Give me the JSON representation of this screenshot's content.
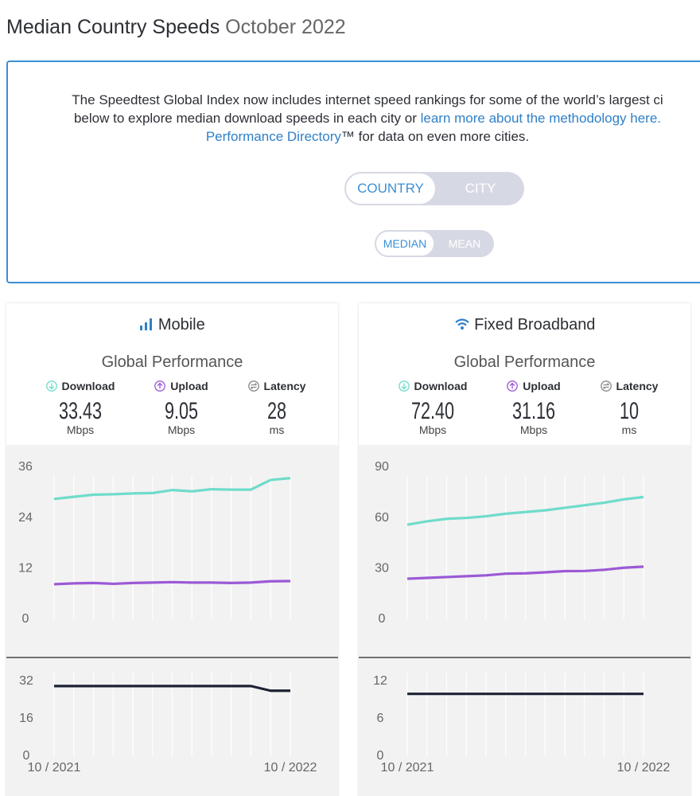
{
  "header": {
    "title": "Median Country Speeds",
    "subtitle": "October 2022"
  },
  "intro": {
    "line1": "The Speedtest Global Index now includes internet speed rankings for some of the world’s largest ci",
    "line2": "below to explore median download speeds in each city or ",
    "line2_link": "learn more about the methodology here.",
    "line3_link": "Performance Directory",
    "line3": "™ for data on even more cities."
  },
  "toggles": {
    "scope": [
      "COUNTRY",
      "CITY"
    ],
    "statistic": [
      "MEDIAN",
      "MEAN"
    ]
  },
  "panels": [
    {
      "title": "Mobile",
      "subtitle": "Global Performance",
      "stats": [
        {
          "label": "Download",
          "value": "33.43",
          "unit": "Mbps"
        },
        {
          "label": "Upload",
          "value": "9.05",
          "unit": "Mbps"
        },
        {
          "label": "Latency",
          "value": "28",
          "unit": "ms"
        }
      ]
    },
    {
      "title": "Fixed Broadband",
      "subtitle": "Global Performance",
      "stats": [
        {
          "label": "Download",
          "value": "72.40",
          "unit": "Mbps"
        },
        {
          "label": "Upload",
          "value": "31.16",
          "unit": "Mbps"
        },
        {
          "label": "Latency",
          "value": "10",
          "unit": "ms"
        }
      ]
    }
  ],
  "chart_data": [
    {
      "type": "line",
      "ylim": [
        0,
        36
      ],
      "yticks": [
        0,
        12,
        24,
        36
      ],
      "series": [
        {
          "color": "#6fdcca",
          "values": [
            28.5,
            29,
            29.5,
            29.6,
            29.8,
            29.9,
            30.6,
            30.3,
            30.8,
            30.7,
            30.7,
            33.0,
            33.43
          ]
        },
        {
          "color": "#9b59d6",
          "values": [
            8.3,
            8.5,
            8.6,
            8.4,
            8.6,
            8.7,
            8.8,
            8.7,
            8.7,
            8.6,
            8.7,
            9.0,
            9.05
          ]
        }
      ]
    },
    {
      "type": "line",
      "ylim": [
        0,
        32
      ],
      "yticks": [
        0,
        16,
        32
      ],
      "categories": [
        "10 / 2021",
        null,
        null,
        null,
        null,
        null,
        null,
        null,
        null,
        null,
        null,
        null,
        "10 / 2022"
      ],
      "series": [
        {
          "color": "#1c2333",
          "values": [
            30,
            30,
            30,
            30,
            30,
            30,
            30,
            30,
            30,
            30,
            30,
            28,
            28
          ]
        }
      ]
    },
    {
      "type": "line",
      "ylim": [
        0,
        90
      ],
      "yticks": [
        0,
        30,
        60,
        90
      ],
      "series": [
        {
          "color": "#6fdcca",
          "values": [
            56,
            58,
            59.5,
            60,
            61,
            62.5,
            63.5,
            64.5,
            66,
            67.5,
            69,
            71,
            72.4
          ]
        },
        {
          "color": "#9b59d6",
          "values": [
            24,
            24.5,
            25,
            25.5,
            26,
            27,
            27.2,
            27.8,
            28.5,
            28.6,
            29.3,
            30.5,
            31.16
          ]
        }
      ]
    },
    {
      "type": "line",
      "ylim": [
        0,
        12
      ],
      "yticks": [
        0,
        6,
        12
      ],
      "categories": [
        "10 / 2021",
        null,
        null,
        null,
        null,
        null,
        null,
        null,
        null,
        null,
        null,
        null,
        "10 / 2022"
      ],
      "series": [
        {
          "color": "#1c2333",
          "values": [
            10,
            10,
            10,
            10,
            10,
            10,
            10,
            10,
            10,
            10,
            10,
            10,
            10
          ]
        }
      ]
    }
  ]
}
